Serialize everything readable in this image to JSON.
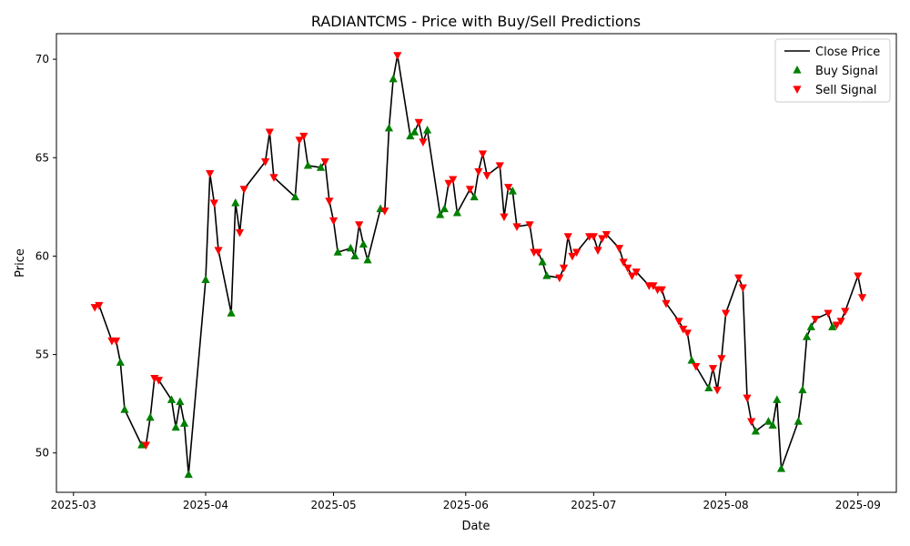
{
  "chart_data": {
    "type": "line",
    "title": "RADIANTCMS - Price with Buy/Sell Predictions",
    "xlabel": "Date",
    "ylabel": "Price",
    "xlim": [
      "2025-02-25",
      "2025-09-10"
    ],
    "ylim": [
      48.0,
      71.3
    ],
    "x_ticks": [
      "2025-03-01",
      "2025-04-01",
      "2025-05-01",
      "2025-06-01",
      "2025-07-01",
      "2025-08-01",
      "2025-09-01"
    ],
    "x_tick_labels": [
      "2025-03",
      "2025-04",
      "2025-05",
      "2025-06",
      "2025-07",
      "2025-08",
      "2025-09"
    ],
    "y_ticks": [
      50,
      55,
      60,
      65,
      70
    ],
    "legend_position": "top-right",
    "colors": {
      "close": "#000000",
      "buy": "#008000",
      "sell": "#ff0000"
    },
    "series": [
      {
        "name": "Close Price",
        "kind": "line",
        "points": [
          [
            "2025-03-06",
            57.4
          ],
          [
            "2025-03-07",
            57.5
          ],
          [
            "2025-03-10",
            55.7
          ],
          [
            "2025-03-11",
            55.7
          ],
          [
            "2025-03-12",
            54.6
          ],
          [
            "2025-03-13",
            52.2
          ],
          [
            "2025-03-17",
            50.4
          ],
          [
            "2025-03-18",
            50.4
          ],
          [
            "2025-03-19",
            51.8
          ],
          [
            "2025-03-20",
            53.8
          ],
          [
            "2025-03-21",
            53.7
          ],
          [
            "2025-03-24",
            52.7
          ],
          [
            "2025-03-25",
            51.3
          ],
          [
            "2025-03-26",
            52.6
          ],
          [
            "2025-03-27",
            51.5
          ],
          [
            "2025-03-28",
            48.9
          ],
          [
            "2025-04-01",
            58.8
          ],
          [
            "2025-04-02",
            64.2
          ],
          [
            "2025-04-03",
            62.7
          ],
          [
            "2025-04-04",
            60.3
          ],
          [
            "2025-04-07",
            57.1
          ],
          [
            "2025-04-08",
            62.7
          ],
          [
            "2025-04-09",
            61.2
          ],
          [
            "2025-04-10",
            63.4
          ],
          [
            "2025-04-15",
            64.8
          ],
          [
            "2025-04-16",
            66.3
          ],
          [
            "2025-04-17",
            64.0
          ],
          [
            "2025-04-22",
            63.0
          ],
          [
            "2025-04-23",
            65.9
          ],
          [
            "2025-04-24",
            66.1
          ],
          [
            "2025-04-25",
            64.6
          ],
          [
            "2025-04-28",
            64.5
          ],
          [
            "2025-04-29",
            64.8
          ],
          [
            "2025-04-30",
            62.8
          ],
          [
            "2025-05-01",
            61.8
          ],
          [
            "2025-05-02",
            60.2
          ],
          [
            "2025-05-05",
            60.4
          ],
          [
            "2025-05-06",
            60.0
          ],
          [
            "2025-05-07",
            61.6
          ],
          [
            "2025-05-08",
            60.6
          ],
          [
            "2025-05-09",
            59.8
          ],
          [
            "2025-05-12",
            62.4
          ],
          [
            "2025-05-13",
            62.3
          ],
          [
            "2025-05-14",
            66.5
          ],
          [
            "2025-05-15",
            69.0
          ],
          [
            "2025-05-16",
            70.2
          ],
          [
            "2025-05-19",
            66.1
          ],
          [
            "2025-05-20",
            66.3
          ],
          [
            "2025-05-21",
            66.8
          ],
          [
            "2025-05-22",
            65.8
          ],
          [
            "2025-05-23",
            66.4
          ],
          [
            "2025-05-26",
            62.1
          ],
          [
            "2025-05-27",
            62.4
          ],
          [
            "2025-05-28",
            63.7
          ],
          [
            "2025-05-29",
            63.9
          ],
          [
            "2025-05-30",
            62.2
          ],
          [
            "2025-06-02",
            63.4
          ],
          [
            "2025-06-03",
            63.0
          ],
          [
            "2025-06-04",
            64.3
          ],
          [
            "2025-06-05",
            65.2
          ],
          [
            "2025-06-06",
            64.1
          ],
          [
            "2025-06-09",
            64.6
          ],
          [
            "2025-06-10",
            62.0
          ],
          [
            "2025-06-11",
            63.5
          ],
          [
            "2025-06-12",
            63.3
          ],
          [
            "2025-06-13",
            61.5
          ],
          [
            "2025-06-16",
            61.6
          ],
          [
            "2025-06-17",
            60.2
          ],
          [
            "2025-06-18",
            60.2
          ],
          [
            "2025-06-19",
            59.7
          ],
          [
            "2025-06-20",
            59.0
          ],
          [
            "2025-06-23",
            58.9
          ],
          [
            "2025-06-24",
            59.4
          ],
          [
            "2025-06-25",
            61.0
          ],
          [
            "2025-06-26",
            60.0
          ],
          [
            "2025-06-27",
            60.2
          ],
          [
            "2025-06-30",
            61.0
          ],
          [
            "2025-07-01",
            61.0
          ],
          [
            "2025-07-02",
            60.3
          ],
          [
            "2025-07-03",
            60.9
          ],
          [
            "2025-07-04",
            61.1
          ],
          [
            "2025-07-07",
            60.4
          ],
          [
            "2025-07-08",
            59.7
          ],
          [
            "2025-07-09",
            59.4
          ],
          [
            "2025-07-10",
            59.0
          ],
          [
            "2025-07-11",
            59.2
          ],
          [
            "2025-07-14",
            58.5
          ],
          [
            "2025-07-15",
            58.5
          ],
          [
            "2025-07-16",
            58.3
          ],
          [
            "2025-07-17",
            58.3
          ],
          [
            "2025-07-18",
            57.6
          ],
          [
            "2025-07-21",
            56.7
          ],
          [
            "2025-07-22",
            56.3
          ],
          [
            "2025-07-23",
            56.1
          ],
          [
            "2025-07-24",
            54.7
          ],
          [
            "2025-07-25",
            54.4
          ],
          [
            "2025-07-28",
            53.3
          ],
          [
            "2025-07-29",
            54.3
          ],
          [
            "2025-07-30",
            53.2
          ],
          [
            "2025-07-31",
            54.8
          ],
          [
            "2025-08-01",
            57.1
          ],
          [
            "2025-08-04",
            58.9
          ],
          [
            "2025-08-05",
            58.4
          ],
          [
            "2025-08-06",
            52.8
          ],
          [
            "2025-08-07",
            51.6
          ],
          [
            "2025-08-08",
            51.1
          ],
          [
            "2025-08-11",
            51.6
          ],
          [
            "2025-08-12",
            51.4
          ],
          [
            "2025-08-13",
            52.7
          ],
          [
            "2025-08-14",
            49.2
          ],
          [
            "2025-08-18",
            51.6
          ],
          [
            "2025-08-19",
            53.2
          ],
          [
            "2025-08-20",
            55.9
          ],
          [
            "2025-08-21",
            56.4
          ],
          [
            "2025-08-22",
            56.8
          ],
          [
            "2025-08-25",
            57.1
          ],
          [
            "2025-08-26",
            56.4
          ],
          [
            "2025-08-27",
            56.5
          ],
          [
            "2025-08-28",
            56.7
          ],
          [
            "2025-08-29",
            57.2
          ],
          [
            "2025-09-01",
            59.0
          ],
          [
            "2025-09-02",
            57.9
          ]
        ]
      },
      {
        "name": "Buy Signal",
        "kind": "scatter",
        "marker": "triangle-up",
        "points": [
          [
            "2025-03-12",
            54.6
          ],
          [
            "2025-03-13",
            52.2
          ],
          [
            "2025-03-17",
            50.4
          ],
          [
            "2025-03-19",
            51.8
          ],
          [
            "2025-03-24",
            52.7
          ],
          [
            "2025-03-25",
            51.3
          ],
          [
            "2025-03-26",
            52.6
          ],
          [
            "2025-03-27",
            51.5
          ],
          [
            "2025-03-28",
            48.9
          ],
          [
            "2025-04-01",
            58.8
          ],
          [
            "2025-04-07",
            57.1
          ],
          [
            "2025-04-08",
            62.7
          ],
          [
            "2025-04-22",
            63.0
          ],
          [
            "2025-04-25",
            64.6
          ],
          [
            "2025-04-28",
            64.5
          ],
          [
            "2025-05-02",
            60.2
          ],
          [
            "2025-05-05",
            60.4
          ],
          [
            "2025-05-06",
            60.0
          ],
          [
            "2025-05-08",
            60.6
          ],
          [
            "2025-05-09",
            59.8
          ],
          [
            "2025-05-12",
            62.4
          ],
          [
            "2025-05-14",
            66.5
          ],
          [
            "2025-05-15",
            69.0
          ],
          [
            "2025-05-19",
            66.1
          ],
          [
            "2025-05-20",
            66.3
          ],
          [
            "2025-05-23",
            66.4
          ],
          [
            "2025-05-26",
            62.1
          ],
          [
            "2025-05-27",
            62.4
          ],
          [
            "2025-05-30",
            62.2
          ],
          [
            "2025-06-03",
            63.0
          ],
          [
            "2025-06-12",
            63.3
          ],
          [
            "2025-06-19",
            59.7
          ],
          [
            "2025-06-20",
            59.0
          ],
          [
            "2025-07-24",
            54.7
          ],
          [
            "2025-07-28",
            53.3
          ],
          [
            "2025-08-08",
            51.1
          ],
          [
            "2025-08-11",
            51.6
          ],
          [
            "2025-08-12",
            51.4
          ],
          [
            "2025-08-13",
            52.7
          ],
          [
            "2025-08-14",
            49.2
          ],
          [
            "2025-08-18",
            51.6
          ],
          [
            "2025-08-19",
            53.2
          ],
          [
            "2025-08-20",
            55.9
          ],
          [
            "2025-08-21",
            56.4
          ],
          [
            "2025-08-26",
            56.4
          ]
        ]
      },
      {
        "name": "Sell Signal",
        "kind": "scatter",
        "marker": "triangle-down",
        "points": [
          [
            "2025-03-06",
            57.4
          ],
          [
            "2025-03-07",
            57.5
          ],
          [
            "2025-03-10",
            55.7
          ],
          [
            "2025-03-11",
            55.7
          ],
          [
            "2025-03-18",
            50.4
          ],
          [
            "2025-03-20",
            53.8
          ],
          [
            "2025-03-21",
            53.7
          ],
          [
            "2025-04-02",
            64.2
          ],
          [
            "2025-04-03",
            62.7
          ],
          [
            "2025-04-04",
            60.3
          ],
          [
            "2025-04-09",
            61.2
          ],
          [
            "2025-04-10",
            63.4
          ],
          [
            "2025-04-15",
            64.8
          ],
          [
            "2025-04-16",
            66.3
          ],
          [
            "2025-04-17",
            64.0
          ],
          [
            "2025-04-23",
            65.9
          ],
          [
            "2025-04-24",
            66.1
          ],
          [
            "2025-04-29",
            64.8
          ],
          [
            "2025-04-30",
            62.8
          ],
          [
            "2025-05-01",
            61.8
          ],
          [
            "2025-05-07",
            61.6
          ],
          [
            "2025-05-13",
            62.3
          ],
          [
            "2025-05-16",
            70.2
          ],
          [
            "2025-05-21",
            66.8
          ],
          [
            "2025-05-22",
            65.8
          ],
          [
            "2025-05-28",
            63.7
          ],
          [
            "2025-05-29",
            63.9
          ],
          [
            "2025-06-02",
            63.4
          ],
          [
            "2025-06-04",
            64.3
          ],
          [
            "2025-06-05",
            65.2
          ],
          [
            "2025-06-06",
            64.1
          ],
          [
            "2025-06-09",
            64.6
          ],
          [
            "2025-06-10",
            62.0
          ],
          [
            "2025-06-11",
            63.5
          ],
          [
            "2025-06-13",
            61.5
          ],
          [
            "2025-06-16",
            61.6
          ],
          [
            "2025-06-17",
            60.2
          ],
          [
            "2025-06-18",
            60.2
          ],
          [
            "2025-06-23",
            58.9
          ],
          [
            "2025-06-24",
            59.4
          ],
          [
            "2025-06-25",
            61.0
          ],
          [
            "2025-06-26",
            60.0
          ],
          [
            "2025-06-27",
            60.2
          ],
          [
            "2025-06-30",
            61.0
          ],
          [
            "2025-07-01",
            61.0
          ],
          [
            "2025-07-02",
            60.3
          ],
          [
            "2025-07-03",
            60.9
          ],
          [
            "2025-07-04",
            61.1
          ],
          [
            "2025-07-07",
            60.4
          ],
          [
            "2025-07-08",
            59.7
          ],
          [
            "2025-07-09",
            59.4
          ],
          [
            "2025-07-10",
            59.0
          ],
          [
            "2025-07-11",
            59.2
          ],
          [
            "2025-07-14",
            58.5
          ],
          [
            "2025-07-15",
            58.5
          ],
          [
            "2025-07-16",
            58.3
          ],
          [
            "2025-07-17",
            58.3
          ],
          [
            "2025-07-18",
            57.6
          ],
          [
            "2025-07-21",
            56.7
          ],
          [
            "2025-07-22",
            56.3
          ],
          [
            "2025-07-23",
            56.1
          ],
          [
            "2025-07-25",
            54.4
          ],
          [
            "2025-07-29",
            54.3
          ],
          [
            "2025-07-30",
            53.2
          ],
          [
            "2025-07-31",
            54.8
          ],
          [
            "2025-08-01",
            57.1
          ],
          [
            "2025-08-04",
            58.9
          ],
          [
            "2025-08-05",
            58.4
          ],
          [
            "2025-08-06",
            52.8
          ],
          [
            "2025-08-07",
            51.6
          ],
          [
            "2025-08-22",
            56.8
          ],
          [
            "2025-08-25",
            57.1
          ],
          [
            "2025-08-27",
            56.5
          ],
          [
            "2025-08-28",
            56.7
          ],
          [
            "2025-08-29",
            57.2
          ],
          [
            "2025-09-01",
            59.0
          ],
          [
            "2025-09-02",
            57.9
          ]
        ]
      }
    ]
  }
}
